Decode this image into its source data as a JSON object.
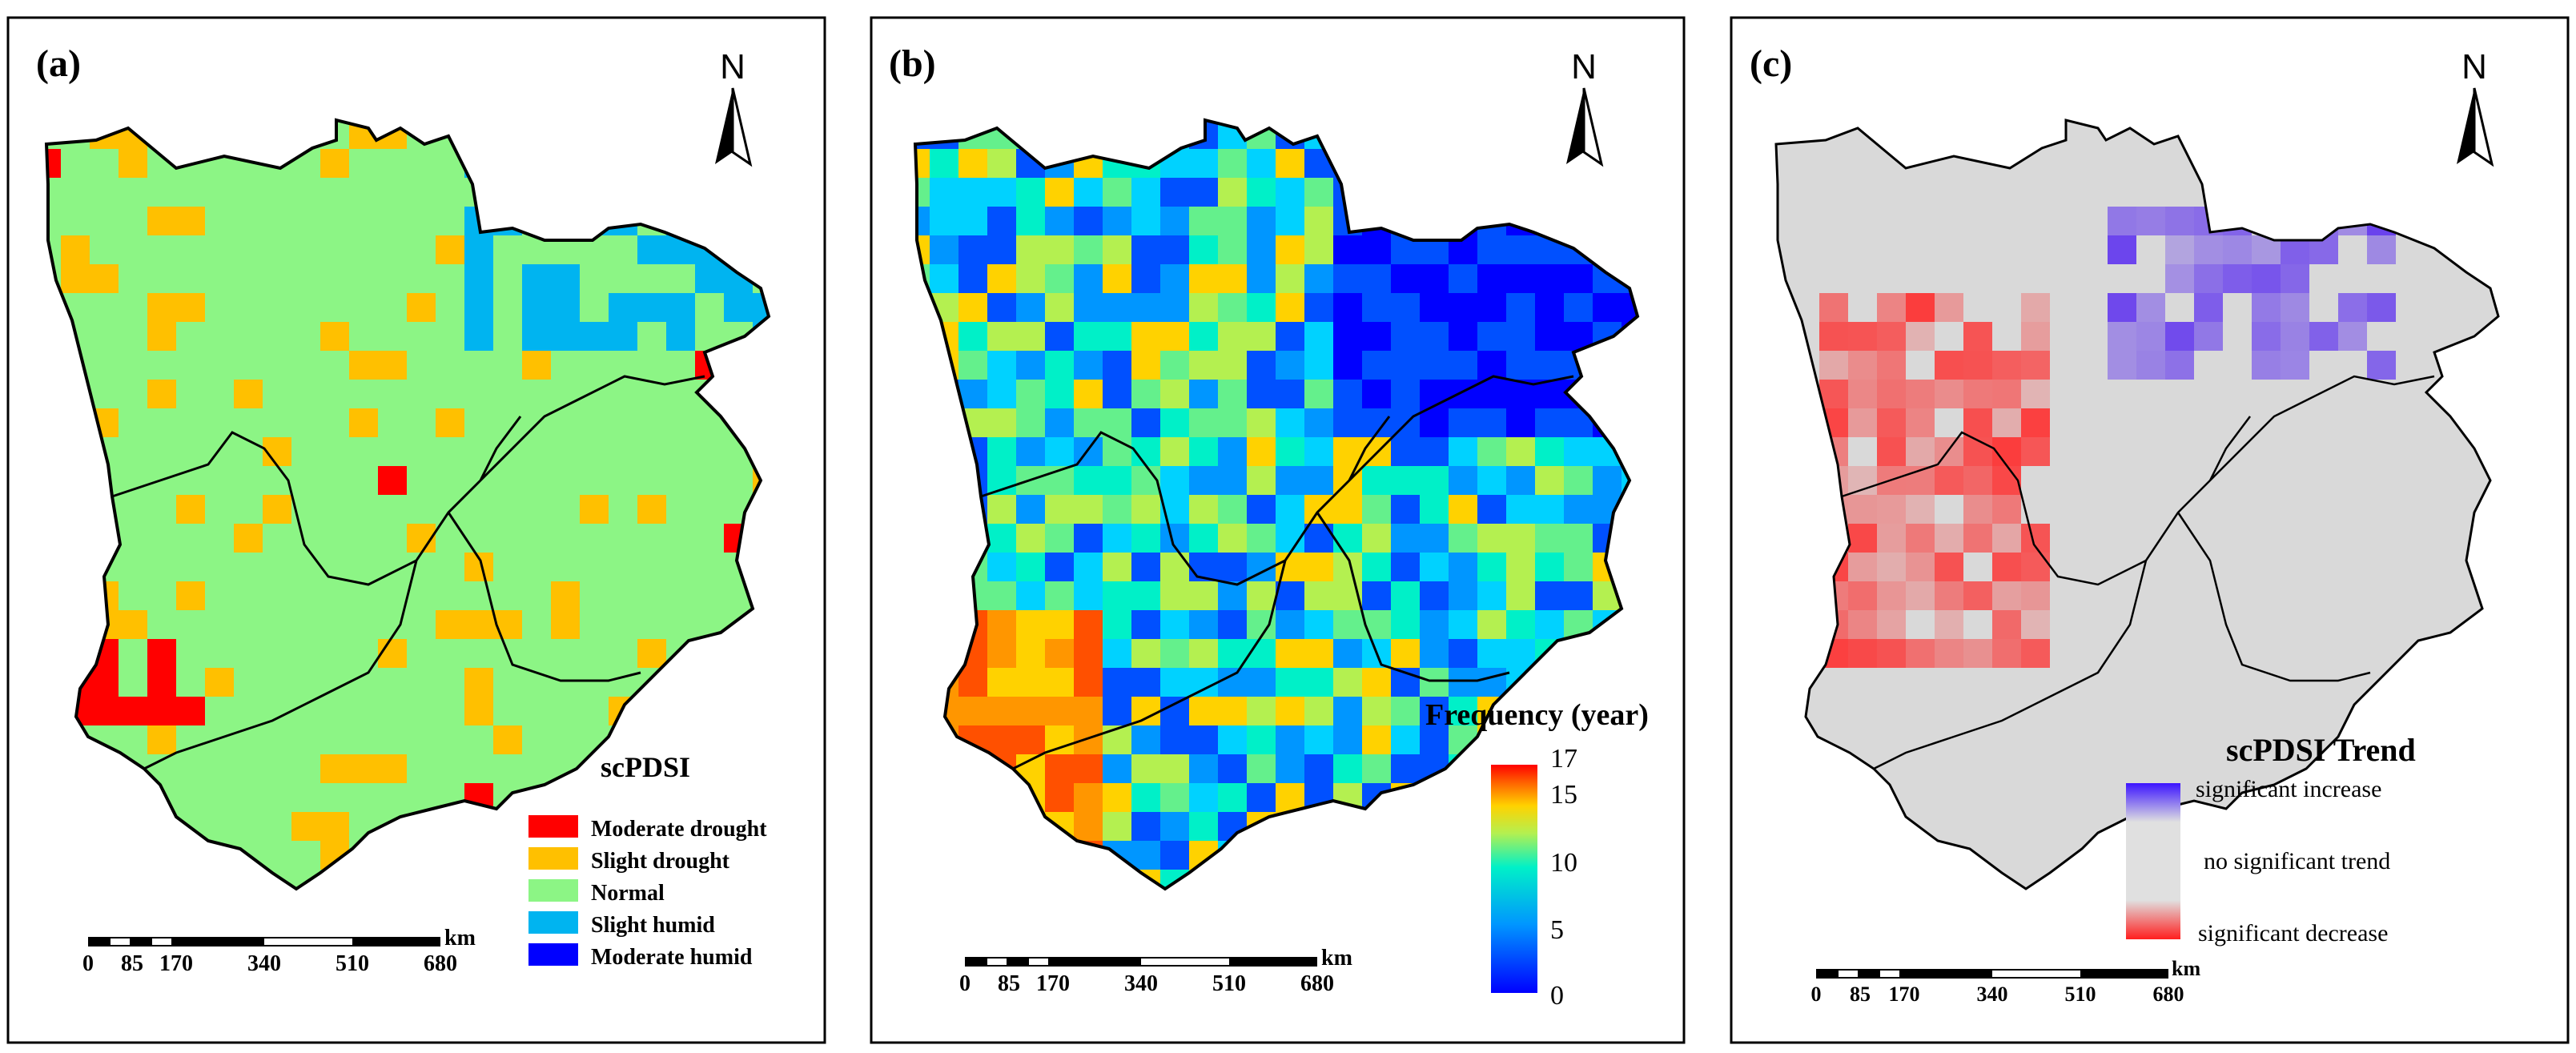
{
  "panels": [
    {
      "label": "(a)",
      "north": "N",
      "legend_title": "scPDSI",
      "legend_items": [
        {
          "label": "Moderate drought",
          "color": "#ff0000"
        },
        {
          "label": "Slight drought",
          "color": "#ffc000"
        },
        {
          "label": "Normal",
          "color": "#8cf585"
        },
        {
          "label": "Slight humid",
          "color": "#00b4f0"
        },
        {
          "label": "Moderate humid",
          "color": "#0000ff"
        }
      ],
      "scale": {
        "ticks": [
          "0",
          "85",
          "170",
          "340",
          "510",
          "680"
        ],
        "unit": "km"
      }
    },
    {
      "label": "(b)",
      "north": "N",
      "colorbar_title": "Frequency (year)",
      "colorbar_ticks": [
        "17",
        "15",
        "10",
        "5",
        "0"
      ],
      "colorbar_range": [
        0,
        17
      ],
      "scale": {
        "ticks": [
          "0",
          "85",
          "170",
          "340",
          "510",
          "680"
        ],
        "unit": "km"
      }
    },
    {
      "label": "(c)",
      "north": "N",
      "legend_title": "scPDSI Trend",
      "legend_labels": [
        "significant increase",
        "no significant trend",
        "significant decrease"
      ],
      "scale": {
        "ticks": [
          "0",
          "85",
          "170",
          "340",
          "510",
          "680"
        ],
        "unit": "km"
      }
    }
  ],
  "colors": {
    "frame": "#000000",
    "background_gray": "#d9d9d9",
    "normal": "#8cf585",
    "increase": "#5a2cf0",
    "decrease": "#ff2a2a"
  }
}
